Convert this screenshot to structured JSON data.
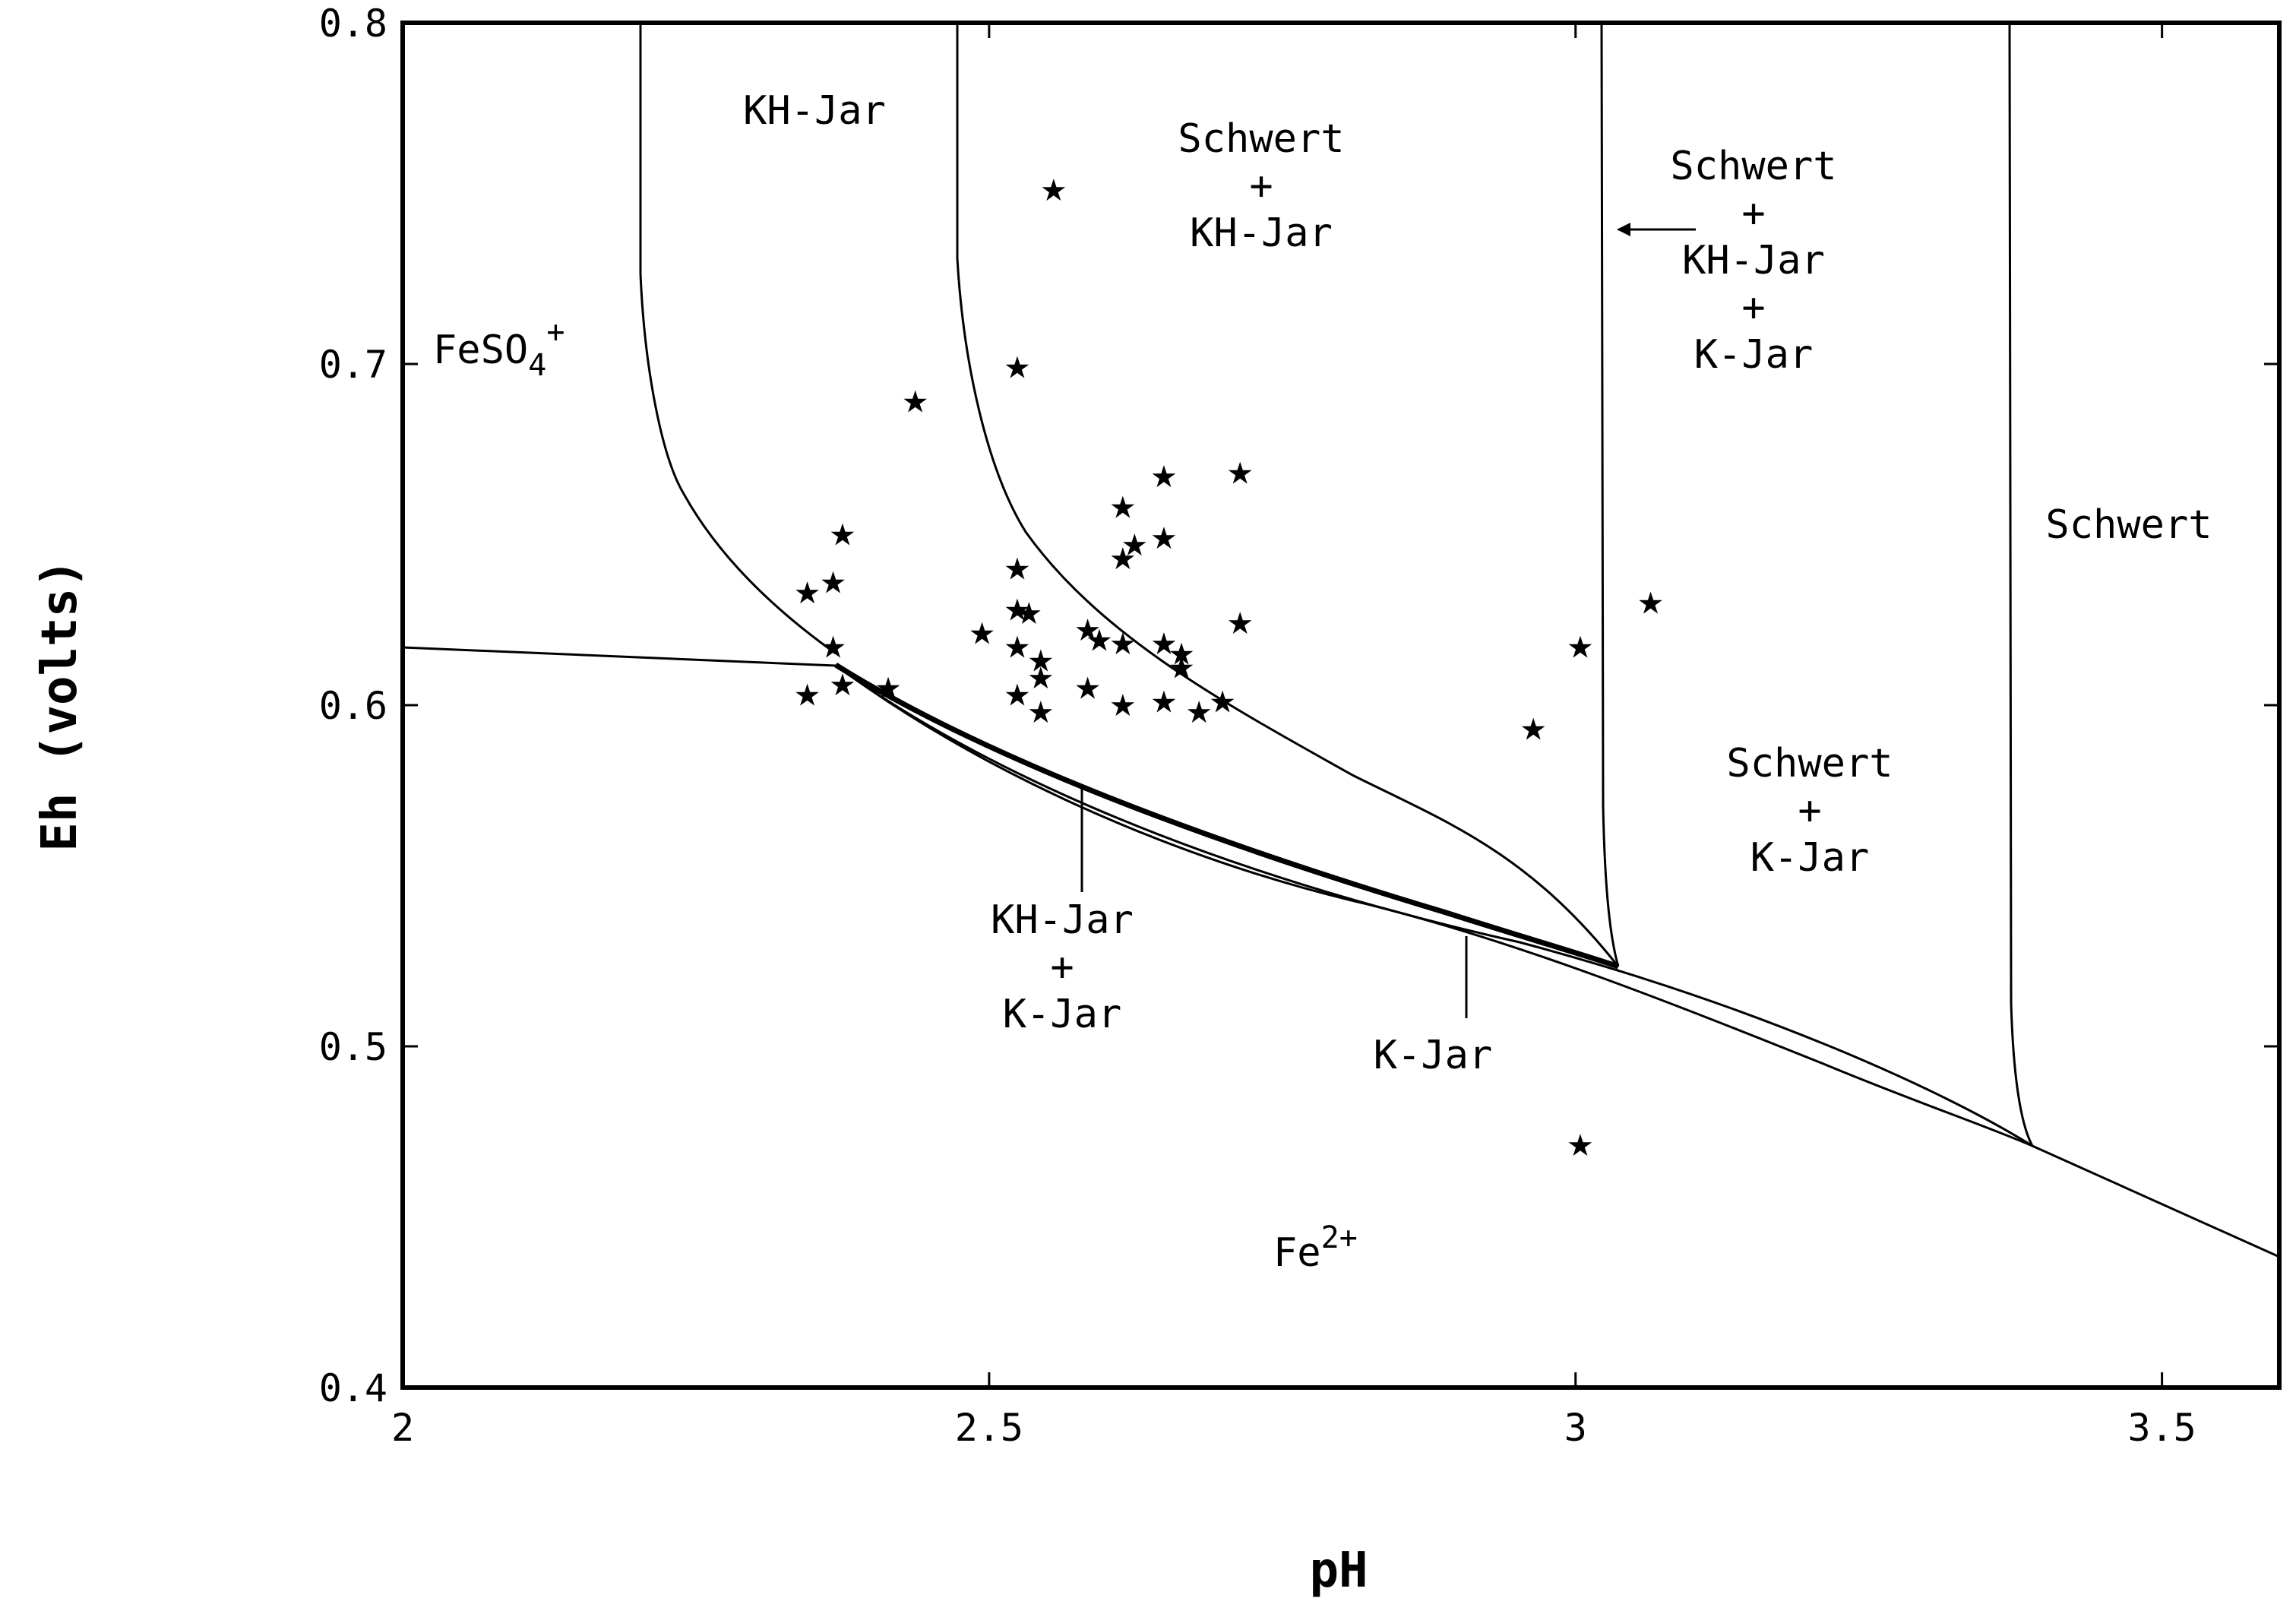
{
  "chart_data": {
    "type": "scatter",
    "xlabel": "pH",
    "ylabel": "Eh (volts)",
    "xlim": [
      2,
      3.6
    ],
    "ylim": [
      0.4,
      0.8
    ],
    "x_ticks": [
      {
        "value": 2,
        "label": "2"
      },
      {
        "value": 2.5,
        "label": "2.5"
      },
      {
        "value": 3,
        "label": "3"
      },
      {
        "value": 3.5,
        "label": "3.5"
      }
    ],
    "y_ticks": [
      {
        "value": 0.4,
        "label": "0.4"
      },
      {
        "value": 0.5,
        "label": "0.5"
      },
      {
        "value": 0.6,
        "label": "0.6"
      },
      {
        "value": 0.7,
        "label": "0.7"
      },
      {
        "value": 0.8,
        "label": "0.8"
      }
    ],
    "grid": false,
    "marker": "★",
    "points": [
      [
        2.555,
        0.751
      ],
      [
        2.524,
        0.699
      ],
      [
        2.437,
        0.689
      ],
      [
        2.649,
        0.667
      ],
      [
        2.714,
        0.668
      ],
      [
        2.614,
        0.658
      ],
      [
        2.649,
        0.649
      ],
      [
        2.624,
        0.647
      ],
      [
        2.614,
        0.643
      ],
      [
        2.375,
        0.65
      ],
      [
        2.524,
        0.64
      ],
      [
        2.345,
        0.633
      ],
      [
        2.367,
        0.636
      ],
      [
        2.524,
        0.628
      ],
      [
        2.534,
        0.627
      ],
      [
        2.714,
        0.624
      ],
      [
        2.494,
        0.621
      ],
      [
        2.584,
        0.622
      ],
      [
        2.594,
        0.619
      ],
      [
        2.614,
        0.618
      ],
      [
        2.649,
        0.618
      ],
      [
        2.664,
        0.615
      ],
      [
        2.664,
        0.611
      ],
      [
        2.524,
        0.617
      ],
      [
        2.544,
        0.613
      ],
      [
        2.544,
        0.608
      ],
      [
        2.367,
        0.617
      ],
      [
        2.345,
        0.603
      ],
      [
        2.375,
        0.606
      ],
      [
        2.414,
        0.605
      ],
      [
        2.524,
        0.603
      ],
      [
        2.584,
        0.605
      ],
      [
        2.544,
        0.598
      ],
      [
        2.614,
        0.6
      ],
      [
        2.649,
        0.601
      ],
      [
        2.679,
        0.598
      ],
      [
        2.699,
        0.601
      ],
      [
        3.004,
        0.617
      ],
      [
        3.064,
        0.63
      ],
      [
        2.964,
        0.593
      ],
      [
        3.004,
        0.471
      ]
    ],
    "regions": [
      {
        "label": "KH-Jar"
      },
      {
        "label": "Schwert",
        "line2": "+",
        "line3": "KH-Jar"
      },
      {
        "label": "Schwert",
        "line2": "+",
        "line3": "KH-Jar",
        "line4": "+",
        "line5": "K-Jar"
      },
      {
        "label": "FeSO",
        "sub": "4",
        "sup": "+"
      },
      {
        "label": "Schwert"
      },
      {
        "label": "Schwert",
        "line2": "+",
        "line3": "K-Jar"
      },
      {
        "label": "KH-Jar",
        "line2": "+",
        "line3": "K-Jar"
      },
      {
        "label": "K-Jar"
      },
      {
        "label": "Fe",
        "sup": "2+"
      }
    ]
  }
}
